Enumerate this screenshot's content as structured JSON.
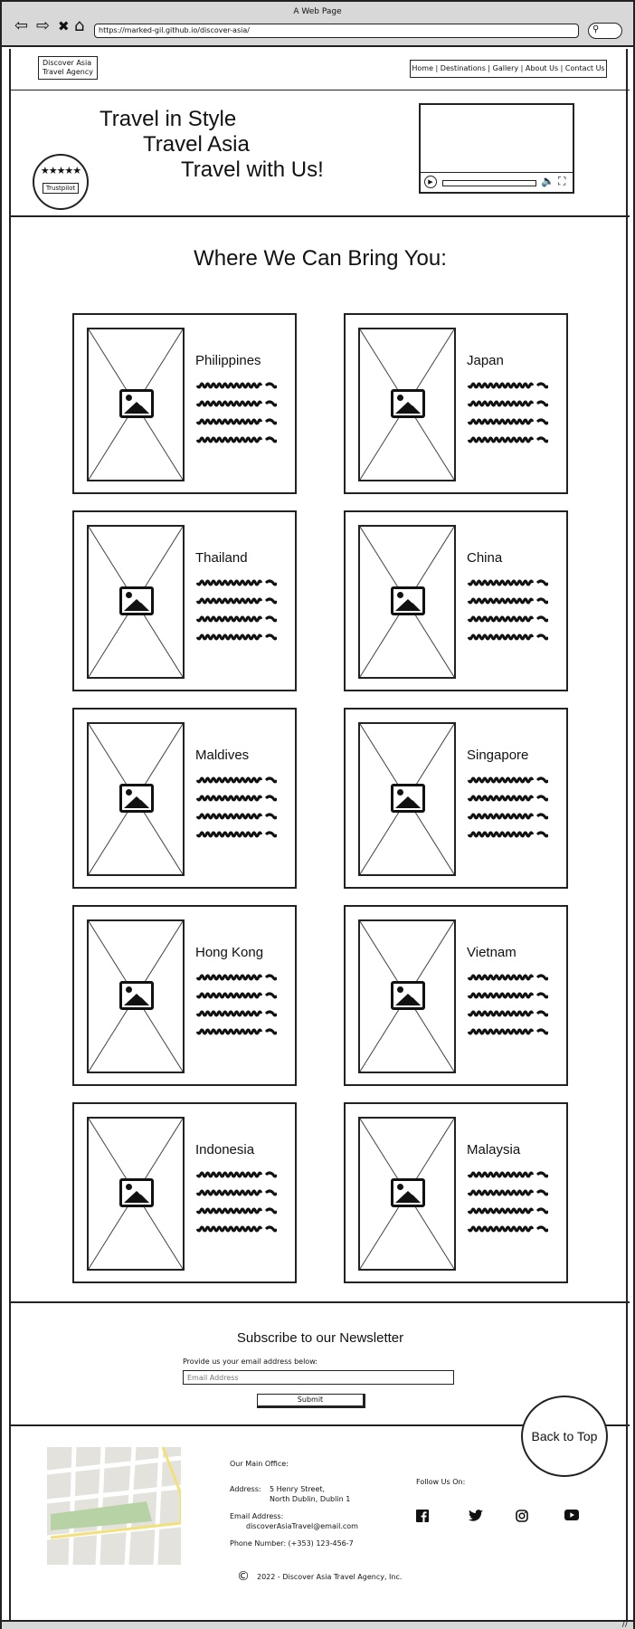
{
  "browser": {
    "title": "A Web Page",
    "url": "https://marked-gil.github.io/discover-asia/",
    "back_icon": "⇦",
    "forward_icon": "⇨",
    "close_icon": "✖",
    "home_icon": "⌂",
    "search_icon": "⚲"
  },
  "header": {
    "logo_line1": "Discover Asia",
    "logo_line2": "Travel Agency",
    "nav": "Home | Destinations | Gallery | About Us | Contact Us"
  },
  "hero": {
    "line1": "Travel in Style",
    "line2": "Travel Asia",
    "line3": "Travel with Us!",
    "stars": "★★★★★",
    "trustpilot": "Trustpilot",
    "video_progress": 0.0
  },
  "destinations": {
    "title": "Where We Can Bring You:",
    "items": [
      {
        "name": "Philippines"
      },
      {
        "name": "Japan"
      },
      {
        "name": "Thailand"
      },
      {
        "name": "China"
      },
      {
        "name": "Maldives"
      },
      {
        "name": "Singapore"
      },
      {
        "name": "Hong Kong"
      },
      {
        "name": "Vietnam"
      },
      {
        "name": "Indonesia"
      },
      {
        "name": "Malaysia"
      }
    ]
  },
  "newsletter": {
    "title": "Subscribe to our Newsletter",
    "prompt": "Provide us your email address below:",
    "placeholder": "Email Address",
    "submit": "Submit"
  },
  "back_to_top": "Back to Top",
  "footer": {
    "office_heading": "Our Main Office:",
    "address_label": "Address:",
    "address_line1": "5 Henry Street,",
    "address_line2": "North Dublin, Dublin 1",
    "email_label": "Email Address:",
    "email": "discoverAsiaTravel@email.com",
    "phone": "Phone Number: (+353) 123-456-7",
    "follow": "Follow Us On:",
    "social_icons": [
      "facebook-icon",
      "twitter-icon",
      "instagram-icon",
      "youtube-icon"
    ],
    "copyright_symbol": "©",
    "copyright": "2022 - Discover Asia Travel Agency, Inc."
  }
}
